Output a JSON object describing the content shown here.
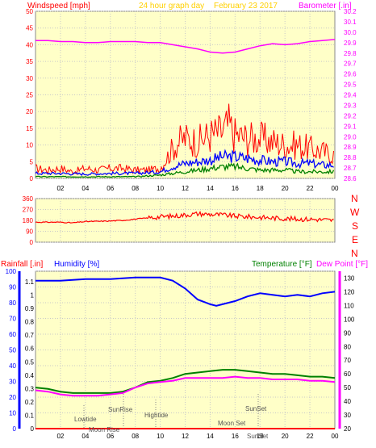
{
  "header": {
    "windspeed_label": "Windspeed [mph]",
    "graph_title": "24 hour graph day",
    "date": "February 23 2017",
    "barometer_label": "Barometer [.in]"
  },
  "direction_letters": [
    "N",
    "W",
    "S",
    "E",
    "N"
  ],
  "bottom_header": {
    "rainfall_label": "Rainfall [.in]",
    "humidity_label": "Humidity [%]",
    "temperature_label": "Temperature [°F]",
    "dewpoint_label": "Dew Point [°F]"
  },
  "colors": {
    "background": "#ffffc8",
    "windspeed": "#ff0000",
    "windspeed_avg": "#0000ff",
    "windspeed_min": "#008000",
    "barometer": "#ff00ff",
    "direction": "#ff0000",
    "humidity": "#0000ff",
    "temperature": "#008000",
    "dewpoint": "#ff00ff",
    "rainfall": "#ff0000",
    "annotation": "#555555"
  },
  "chart_data": [
    {
      "type": "line",
      "name": "wind",
      "x_ticks": [
        "02",
        "04",
        "06",
        "08",
        "10",
        "12",
        "14",
        "16",
        "18",
        "20",
        "22",
        "00"
      ],
      "y_left_ticks": [
        0,
        5,
        10,
        15,
        20,
        25,
        30,
        35,
        40,
        45,
        50
      ],
      "y_left_range": [
        0,
        50
      ],
      "y_right_ticks": [
        28.6,
        28.7,
        28.8,
        28.9,
        29.0,
        29.1,
        29.2,
        29.3,
        29.4,
        29.5,
        29.6,
        29.7,
        29.8,
        29.9,
        30.0,
        30.1,
        30.2
      ],
      "y_right_range": [
        28.6,
        30.2
      ],
      "x_range": [
        0,
        24
      ],
      "series": [
        {
          "key": "gust",
          "axis": "left",
          "x": [
            0,
            1,
            2,
            3,
            4,
            5,
            6,
            7,
            8,
            9,
            10,
            10.5,
            11,
            11.5,
            12,
            13,
            14,
            15,
            15.5,
            16,
            17,
            18,
            19,
            20,
            21,
            22,
            23,
            24
          ],
          "y": [
            3,
            2.5,
            3,
            2,
            3,
            2.5,
            3,
            3,
            2.5,
            2.5,
            3,
            6,
            9,
            11,
            12,
            11,
            13,
            14,
            16,
            13,
            12,
            12,
            11,
            10,
            10,
            9,
            8,
            7
          ]
        },
        {
          "key": "average",
          "axis": "left",
          "x": [
            0,
            2,
            4,
            6,
            8,
            10,
            11,
            12,
            13,
            14,
            15,
            16,
            17,
            18,
            19,
            20,
            21,
            22,
            23,
            24
          ],
          "y": [
            1.5,
            1.5,
            1.3,
            1.5,
            1.5,
            2,
            3.5,
            4.5,
            5,
            5.5,
            6.5,
            6.5,
            6,
            5.5,
            5,
            5,
            4.5,
            4.5,
            4,
            4
          ]
        },
        {
          "key": "minimum",
          "axis": "left",
          "x": [
            0,
            2,
            4,
            6,
            8,
            10,
            11,
            12,
            13,
            14,
            15,
            16,
            17,
            18,
            19,
            20,
            21,
            22,
            23,
            24
          ],
          "y": [
            0.5,
            0.5,
            0.5,
            0.5,
            0.5,
            1,
            1.5,
            2,
            2.5,
            3,
            3.5,
            3.5,
            3,
            2.5,
            2.5,
            2.5,
            2,
            2,
            2,
            2
          ]
        },
        {
          "key": "barometer",
          "axis": "right",
          "x": [
            0,
            1,
            2,
            3,
            4,
            5,
            6,
            7,
            8,
            9,
            10,
            11,
            12,
            13,
            14,
            15,
            16,
            17,
            18,
            19,
            20,
            21,
            22,
            23,
            24
          ],
          "y": [
            29.92,
            29.92,
            29.91,
            29.91,
            29.9,
            29.9,
            29.91,
            29.91,
            29.91,
            29.9,
            29.9,
            29.88,
            29.86,
            29.84,
            29.81,
            29.8,
            29.81,
            29.84,
            29.87,
            29.89,
            29.88,
            29.89,
            29.91,
            29.92,
            29.93
          ]
        }
      ]
    },
    {
      "type": "line",
      "name": "wind direction",
      "x_ticks": [
        "02",
        "04",
        "06",
        "08",
        "10",
        "12",
        "14",
        "16",
        "18",
        "20",
        "22",
        "00"
      ],
      "y_ticks": [
        0,
        90,
        180,
        270,
        360
      ],
      "y_range": [
        0,
        360
      ],
      "x_range": [
        0,
        24
      ],
      "x": [
        0,
        2,
        3,
        4,
        5,
        6,
        7,
        8,
        9,
        10,
        11,
        12,
        13,
        14,
        15,
        16,
        17,
        18,
        19,
        20,
        21,
        22,
        23,
        24
      ],
      "y": [
        165,
        165,
        160,
        170,
        172,
        175,
        180,
        190,
        200,
        210,
        215,
        225,
        235,
        230,
        225,
        215,
        210,
        205,
        200,
        195,
        190,
        190,
        185,
        180
      ]
    },
    {
      "type": "line",
      "name": "humidity temperature",
      "x_ticks": [
        "02",
        "04",
        "06",
        "08",
        "10",
        "12",
        "14",
        "16",
        "18",
        "20",
        "22",
        "00"
      ],
      "y_left_ticks": [
        0,
        10,
        20,
        30,
        40,
        50,
        60,
        70,
        80,
        90,
        100
      ],
      "y_left_range": [
        0,
        100
      ],
      "y_rain_ticks": [
        0,
        0.1,
        0.2,
        0.3,
        0.4,
        0.5,
        0.6,
        0.7,
        0.8,
        0.9,
        1,
        1.1
      ],
      "y_right_ticks": [
        20,
        30,
        40,
        50,
        60,
        70,
        80,
        90,
        100,
        110,
        120,
        130
      ],
      "y_right_range": [
        20,
        135
      ],
      "x_range": [
        0,
        24
      ],
      "annotations": [
        "Lowtide",
        "Moon Rise",
        "SunRise",
        "Hightide",
        "Moon Set",
        "SunSet",
        "SunSet"
      ],
      "series": [
        {
          "key": "humidity",
          "axis": "left",
          "x": [
            0,
            2,
            4,
            6,
            8,
            9,
            10,
            11,
            12,
            13,
            14,
            14.5,
            15,
            16,
            17,
            18,
            19,
            20,
            21,
            22,
            23,
            24
          ],
          "y": [
            94,
            94,
            95,
            95,
            96,
            96,
            96,
            94,
            89,
            82,
            79,
            78,
            79,
            81,
            84,
            86,
            85,
            84,
            85,
            84,
            86,
            87
          ]
        },
        {
          "key": "temperature",
          "axis": "right",
          "x": [
            0,
            1,
            2,
            3,
            4,
            5,
            6,
            7,
            8,
            9,
            10,
            11,
            12,
            13,
            14,
            15,
            16,
            17,
            18,
            19,
            20,
            21,
            22,
            23,
            24
          ],
          "y": [
            50,
            49,
            47,
            46,
            46,
            46,
            46,
            47,
            50,
            54,
            55,
            57,
            60,
            61,
            62,
            63,
            63,
            62,
            61,
            60,
            60,
            59,
            58,
            58,
            57
          ]
        },
        {
          "key": "dewpoint",
          "axis": "right",
          "x": [
            0,
            1,
            2,
            3,
            4,
            5,
            6,
            7,
            8,
            9,
            10,
            11,
            12,
            13,
            14,
            15,
            16,
            17,
            18,
            19,
            20,
            21,
            22,
            23,
            24
          ],
          "y": [
            48,
            47,
            45,
            44,
            44,
            44,
            45,
            46,
            50,
            53,
            54,
            55,
            57,
            57,
            57,
            57,
            58,
            57,
            57,
            56,
            56,
            56,
            55,
            55,
            54
          ]
        },
        {
          "key": "rainfall",
          "axis": "rain",
          "x": [
            0,
            24
          ],
          "y": [
            0,
            0
          ]
        }
      ]
    }
  ]
}
